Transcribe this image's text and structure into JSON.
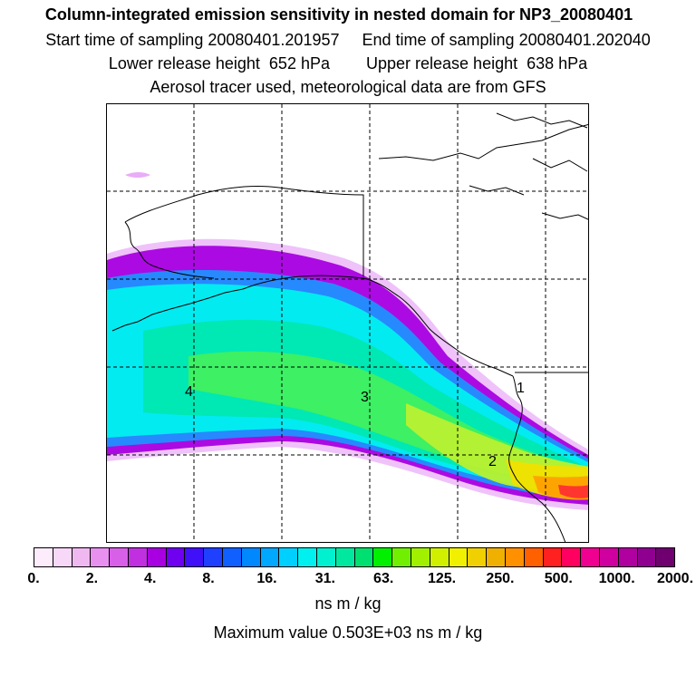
{
  "header": {
    "title": "Column-integrated emission sensitivity in nested domain for NP3_20080401",
    "line2": "Start time of sampling 20080401.201957     End time of sampling 20080401.202040",
    "line3": "Lower release height  652 hPa        Upper release height  638 hPa",
    "line4": "Aerosol tracer used, meteorological data are from GFS"
  },
  "map": {
    "labels": [
      "4",
      "3",
      "2",
      "1"
    ],
    "plume_colors": {
      "purple": "#a800e0",
      "light_purple": "#e8a8f8",
      "blue": "#2090ff",
      "cyan": "#00f0f0",
      "teal": "#00e8b0",
      "green": "#40f060",
      "yellow_green": "#b8f030",
      "yellow": "#f0e000",
      "orange": "#ffa000",
      "red": "#ff3030"
    }
  },
  "colorbar": {
    "colors": [
      "#fcecfc",
      "#f8d8f8",
      "#f0b8f0",
      "#e890f0",
      "#d860e8",
      "#c030e0",
      "#a800e0",
      "#7000f0",
      "#4010f8",
      "#2040ff",
      "#1060ff",
      "#0088ff",
      "#00a8ff",
      "#00d0ff",
      "#00f0f0",
      "#00f0d0",
      "#00e8a0",
      "#00e070",
      "#00f000",
      "#70f000",
      "#a0f000",
      "#d0f000",
      "#f0f000",
      "#f0d000",
      "#f0b000",
      "#ff9000",
      "#ff6000",
      "#ff2020",
      "#ff0060",
      "#f00090",
      "#d000a0",
      "#b000a0",
      "#900090",
      "#700070"
    ],
    "tick_labels": [
      "0.",
      "2.",
      "4.",
      "8.",
      "16.",
      "31.",
      "63.",
      "125.",
      "250.",
      "500.",
      "1000.",
      "2000."
    ],
    "units": "ns m / kg",
    "max_value": "Maximum value  0.503E+03 ns m / kg"
  }
}
